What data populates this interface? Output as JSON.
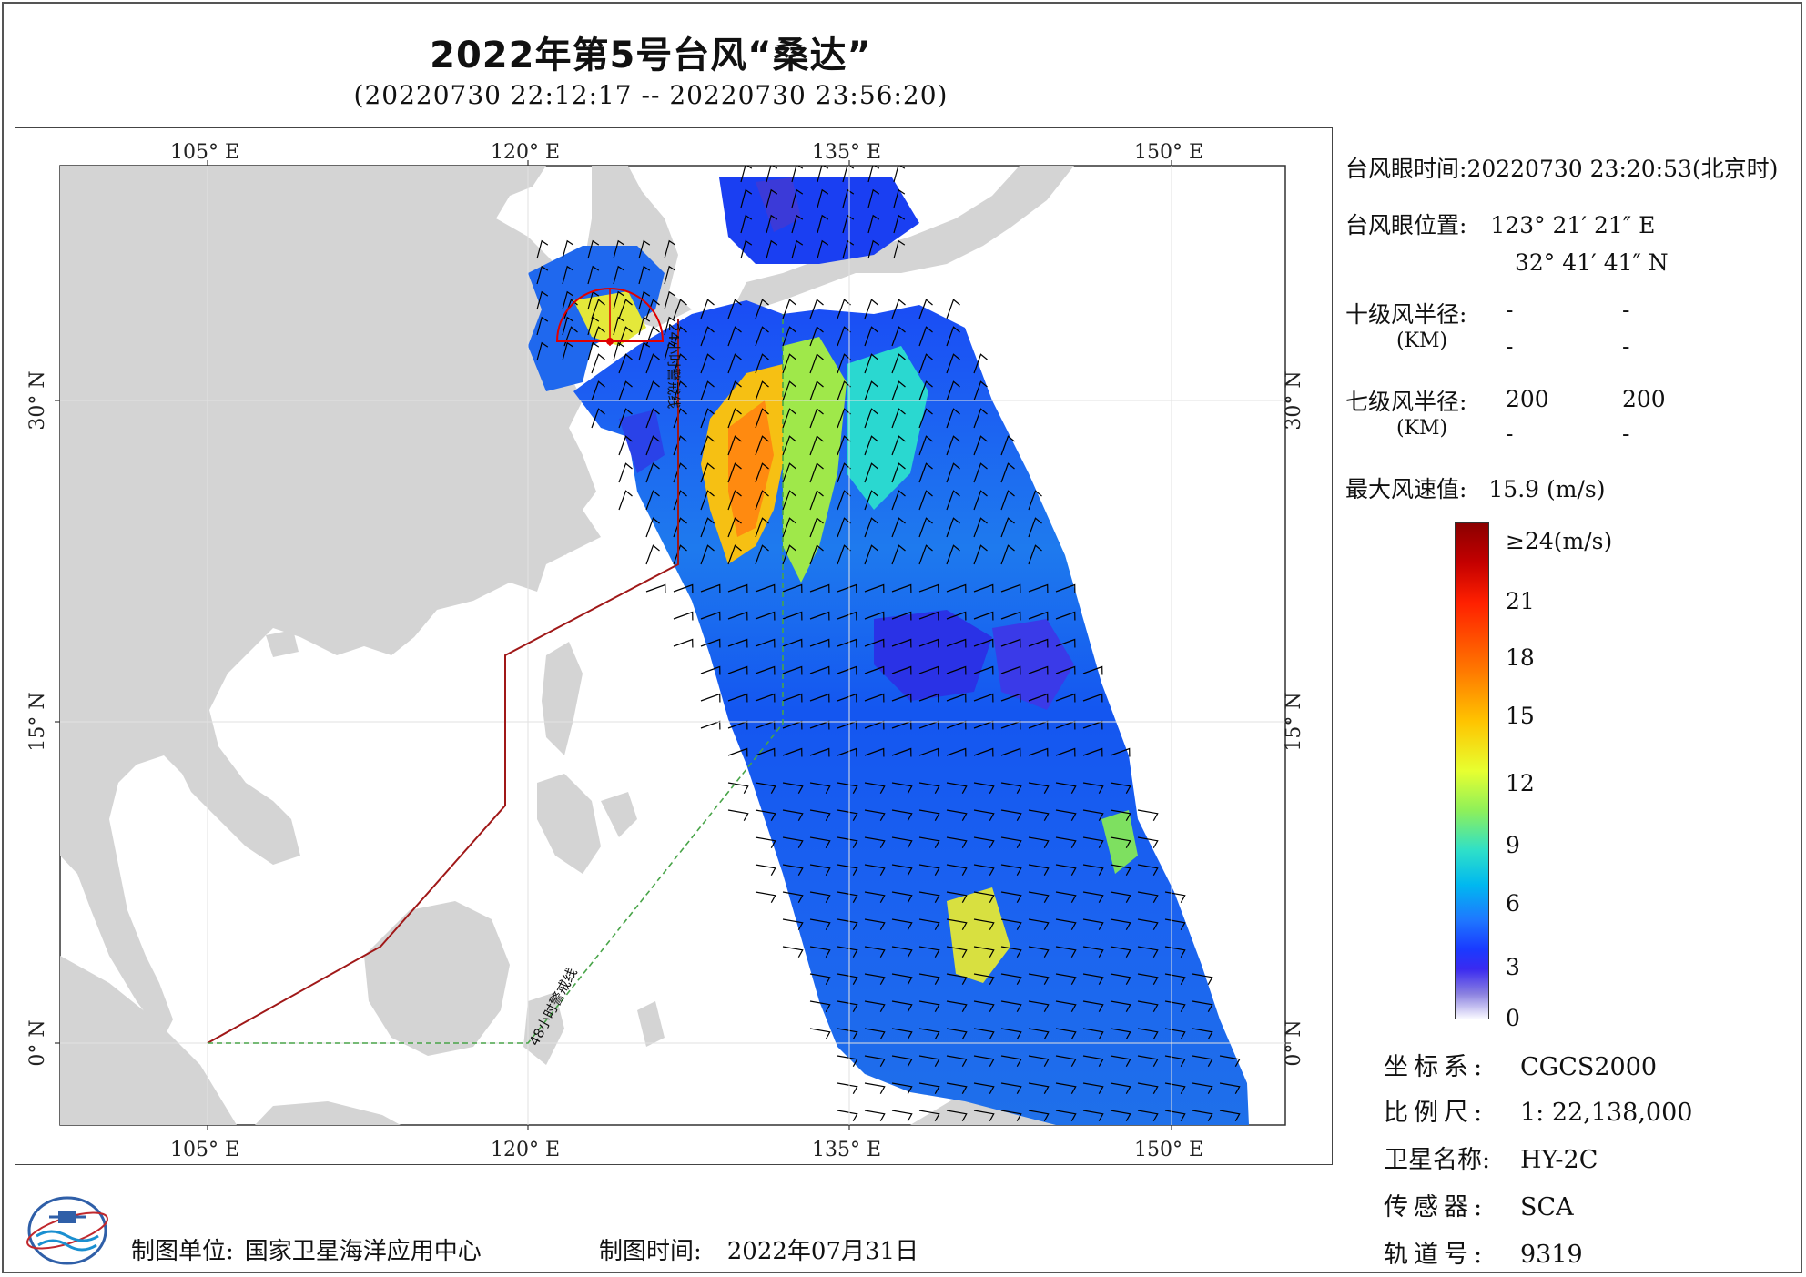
{
  "title": "2022年第5号台风“桑达”",
  "subtitle": "(20220730 22:12:17 -- 20220730 23:56:20)",
  "map": {
    "lon_labels": [
      "105° E",
      "120° E",
      "135° E",
      "150° E"
    ],
    "lat_labels": [
      "30° N",
      "15° N",
      "0° N"
    ],
    "alert_24h_label": "24小时警戒线",
    "alert_48h_label": "48小时警戒线",
    "colors": {
      "land": "#d4d4d4",
      "sea": "#ffffff",
      "alert_24h": "#a01818",
      "alert_48h": "#48a448",
      "wind_barb": "#000000"
    }
  },
  "info": {
    "eye_time_label": "台风眼时间:",
    "eye_time_value": "20220730 23:20:53(北京时)",
    "eye_pos_label": "台风眼位置:",
    "eye_lon": "123° 21′ 21″ E",
    "eye_lat": "32° 41′ 41″ N",
    "r10_label": "十级风半径:",
    "r10_unit": "(KM)",
    "r10_values": [
      "-",
      "-",
      "-",
      "-"
    ],
    "r7_label": "七级风半径:",
    "r7_unit": "(KM)",
    "r7_values": [
      "200",
      "200",
      "-",
      "-"
    ],
    "max_wind_label": "最大风速值:",
    "max_wind_value": "15.9  (m/s)"
  },
  "legend": {
    "labels": [
      "≥24(m/s)",
      "21",
      "18",
      "15",
      "12",
      "9",
      "6",
      "3",
      "0"
    ]
  },
  "meta": {
    "crs_label": "坐标系:",
    "crs_value": "CGCS2000",
    "scale_label": "比例尺:",
    "scale_value": "1: 22,138,000",
    "satellite_label": "卫星名称:",
    "satellite_value": "HY-2C",
    "sensor_label": "传感器:",
    "sensor_value": "SCA",
    "orbit_label": "轨道号:",
    "orbit_value": "9319"
  },
  "footer": {
    "unit_label": "制图单位:",
    "unit_value": "国家卫星海洋应用中心",
    "time_label": "制图时间:",
    "time_value": "2022年07月31日"
  }
}
